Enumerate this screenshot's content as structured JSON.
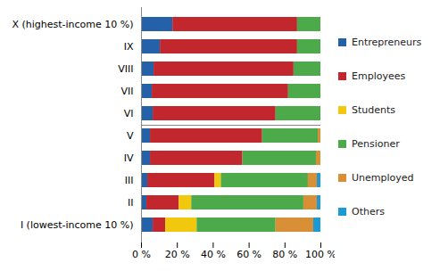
{
  "chart_data": {
    "type": "bar",
    "orientation": "horizontal",
    "stacked": true,
    "legend": "right",
    "grid": false,
    "categories": [
      "X (highest-income 10 %)",
      "IX",
      "VIII",
      "VII",
      "VI",
      "V",
      "IV",
      "III",
      "II",
      "I (lowest-income 10 %)"
    ],
    "series": [
      {
        "name": "Entrepreneurs",
        "color": "#2461a8",
        "values": [
          17.5,
          10.5,
          7,
          6,
          6.5,
          5,
          5,
          3.5,
          3,
          6.5
        ]
      },
      {
        "name": "Employees",
        "color": "#c1272d",
        "values": [
          69.5,
          76.5,
          78,
          76,
          68.5,
          62.5,
          51.5,
          37.5,
          18,
          7
        ]
      },
      {
        "name": "Students",
        "color": "#f2c80f",
        "values": [
          0,
          0,
          0,
          0,
          0,
          0,
          0,
          3.5,
          7,
          17.5
        ]
      },
      {
        "name": "Pensioner",
        "color": "#4caa4a",
        "values": [
          13,
          13,
          15,
          18,
          25,
          31,
          41,
          48.5,
          62.5,
          44
        ]
      },
      {
        "name": "Unemployed",
        "color": "#d98f35",
        "values": [
          0,
          0,
          0,
          0,
          0,
          1.5,
          2.5,
          5,
          7.5,
          21
        ]
      },
      {
        "name": "Others",
        "color": "#1b9ad6",
        "values": [
          0,
          0,
          0,
          0,
          0,
          0,
          0,
          2,
          2,
          4
        ]
      }
    ],
    "xlim": [
      0,
      100
    ],
    "xticks": [
      {
        "value": 0,
        "label": "0 %"
      },
      {
        "value": 20,
        "label": "20 %"
      },
      {
        "value": 40,
        "label": "40 %"
      },
      {
        "value": 60,
        "label": "60 %"
      },
      {
        "value": 80,
        "label": "80 %"
      },
      {
        "value": 100,
        "label": "100 %"
      }
    ]
  }
}
